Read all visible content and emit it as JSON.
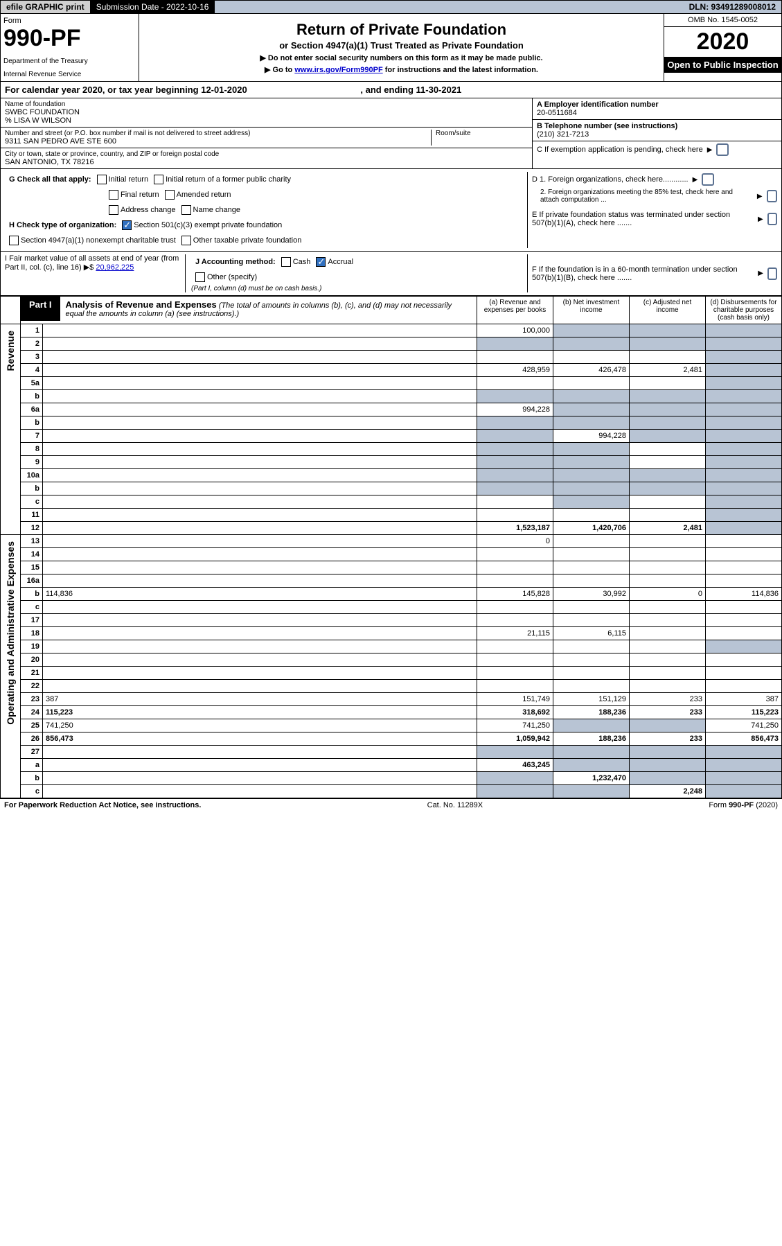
{
  "topbar": {
    "efile": "efile GRAPHIC print",
    "submission_label": "Submission Date - 2022-10-16",
    "dln": "DLN: 93491289008012"
  },
  "header": {
    "form_word": "Form",
    "form_num": "990-PF",
    "dept": "Department of the Treasury",
    "irs": "Internal Revenue Service",
    "title": "Return of Private Foundation",
    "subtitle": "or Section 4947(a)(1) Trust Treated as Private Foundation",
    "instr1": "▶ Do not enter social security numbers on this form as it may be made public.",
    "instr2_pre": "▶ Go to ",
    "instr2_link": "www.irs.gov/Form990PF",
    "instr2_post": " for instructions and the latest information.",
    "omb": "OMB No. 1545-0052",
    "year": "2020",
    "open": "Open to Public Inspection"
  },
  "cal_year": {
    "text": "For calendar year 2020, or tax year beginning 12-01-2020",
    "ending": ", and ending 11-30-2021"
  },
  "foundation": {
    "name_label": "Name of foundation",
    "name": "SWBC FOUNDATION",
    "care_of": "% LISA W WILSON",
    "addr_label": "Number and street (or P.O. box number if mail is not delivered to street address)",
    "addr": "9311 SAN PEDRO AVE STE 600",
    "room_label": "Room/suite",
    "city_label": "City or town, state or province, country, and ZIP or foreign postal code",
    "city": "SAN ANTONIO, TX  78216"
  },
  "right_info": {
    "a_label": "A Employer identification number",
    "a_val": "20-0511684",
    "b_label": "B Telephone number (see instructions)",
    "b_val": "(210) 321-7213",
    "c_label": "C If exemption application is pending, check here",
    "d1": "D 1. Foreign organizations, check here............",
    "d2": "2. Foreign organizations meeting the 85% test, check here and attach computation ...",
    "e": "E  If private foundation status was terminated under section 507(b)(1)(A), check here .......",
    "f": "F  If the foundation is in a 60-month termination under section 507(b)(1)(B), check here .......",
    "arrow": "▶"
  },
  "g": {
    "label": "G Check all that apply:",
    "opts": [
      "Initial return",
      "Initial return of a former public charity",
      "Final return",
      "Amended return",
      "Address change",
      "Name change"
    ]
  },
  "h": {
    "label": "H Check type of organization:",
    "opt1": "Section 501(c)(3) exempt private foundation",
    "opt2": "Section 4947(a)(1) nonexempt charitable trust",
    "opt3": "Other taxable private foundation"
  },
  "i": {
    "label": "I Fair market value of all assets at end of year (from Part II, col. (c), line 16) ▶$ ",
    "val": "20,962,225",
    "j_label": "J Accounting method:",
    "cash": "Cash",
    "accrual": "Accrual",
    "other": "Other (specify)",
    "note": "(Part I, column (d) must be on cash basis.)"
  },
  "part1": {
    "label": "Part I",
    "title": "Analysis of Revenue and Expenses",
    "note": "(The total of amounts in columns (b), (c), and (d) may not necessarily equal the amounts in column (a) (see instructions).)",
    "col_a": "(a)   Revenue and expenses per books",
    "col_b": "(b)   Net investment income",
    "col_c": "(c)   Adjusted net income",
    "col_d": "(d)   Disbursements for charitable purposes (cash basis only)"
  },
  "side_labels": {
    "revenue": "Revenue",
    "opex": "Operating and Administrative Expenses"
  },
  "rows": [
    {
      "n": "1",
      "d": "",
      "a": "100,000",
      "b": "",
      "c": "",
      "b_sh": true,
      "c_sh": true,
      "d_sh": true
    },
    {
      "n": "2",
      "d": "",
      "a": "",
      "b": "",
      "c": "",
      "a_sh": true,
      "b_sh": true,
      "c_sh": true,
      "d_sh": true
    },
    {
      "n": "3",
      "d": "",
      "a": "",
      "b": "",
      "c": "",
      "d_sh": true
    },
    {
      "n": "4",
      "d": "",
      "a": "428,959",
      "b": "426,478",
      "c": "2,481",
      "d_sh": true
    },
    {
      "n": "5a",
      "d": "",
      "a": "",
      "b": "",
      "c": "",
      "d_sh": true
    },
    {
      "n": "b",
      "d": "",
      "a": "",
      "b": "",
      "c": "",
      "a_sh": true,
      "b_sh": true,
      "c_sh": true,
      "d_sh": true
    },
    {
      "n": "6a",
      "d": "",
      "a": "994,228",
      "b": "",
      "c": "",
      "b_sh": true,
      "c_sh": true,
      "d_sh": true
    },
    {
      "n": "b",
      "d": "",
      "a": "",
      "b": "",
      "c": "",
      "a_sh": true,
      "b_sh": true,
      "c_sh": true,
      "d_sh": true
    },
    {
      "n": "7",
      "d": "",
      "a": "",
      "b": "994,228",
      "c": "",
      "a_sh": true,
      "c_sh": true,
      "d_sh": true
    },
    {
      "n": "8",
      "d": "",
      "a": "",
      "b": "",
      "c": "",
      "a_sh": true,
      "b_sh": true,
      "d_sh": true
    },
    {
      "n": "9",
      "d": "",
      "a": "",
      "b": "",
      "c": "",
      "a_sh": true,
      "b_sh": true,
      "d_sh": true
    },
    {
      "n": "10a",
      "d": "",
      "a": "",
      "b": "",
      "c": "",
      "a_sh": true,
      "b_sh": true,
      "c_sh": true,
      "d_sh": true
    },
    {
      "n": "b",
      "d": "",
      "a": "",
      "b": "",
      "c": "",
      "a_sh": true,
      "b_sh": true,
      "c_sh": true,
      "d_sh": true
    },
    {
      "n": "c",
      "d": "",
      "a": "",
      "b": "",
      "c": "",
      "b_sh": true,
      "d_sh": true
    },
    {
      "n": "11",
      "d": "",
      "a": "",
      "b": "",
      "c": "",
      "d_sh": true
    },
    {
      "n": "12",
      "d": "",
      "a": "1,523,187",
      "b": "1,420,706",
      "c": "2,481",
      "bold": true,
      "d_sh": true
    },
    {
      "n": "13",
      "d": "",
      "a": "0",
      "b": "",
      "c": ""
    },
    {
      "n": "14",
      "d": "",
      "a": "",
      "b": "",
      "c": ""
    },
    {
      "n": "15",
      "d": "",
      "a": "",
      "b": "",
      "c": ""
    },
    {
      "n": "16a",
      "d": "",
      "a": "",
      "b": "",
      "c": ""
    },
    {
      "n": "b",
      "d": "114,836",
      "a": "145,828",
      "b": "30,992",
      "c": "0"
    },
    {
      "n": "c",
      "d": "",
      "a": "",
      "b": "",
      "c": ""
    },
    {
      "n": "17",
      "d": "",
      "a": "",
      "b": "",
      "c": ""
    },
    {
      "n": "18",
      "d": "",
      "a": "21,115",
      "b": "6,115",
      "c": ""
    },
    {
      "n": "19",
      "d": "",
      "a": "",
      "b": "",
      "c": "",
      "d_sh": true
    },
    {
      "n": "20",
      "d": "",
      "a": "",
      "b": "",
      "c": ""
    },
    {
      "n": "21",
      "d": "",
      "a": "",
      "b": "",
      "c": ""
    },
    {
      "n": "22",
      "d": "",
      "a": "",
      "b": "",
      "c": ""
    },
    {
      "n": "23",
      "d": "387",
      "a": "151,749",
      "b": "151,129",
      "c": "233"
    },
    {
      "n": "24",
      "d": "115,223",
      "a": "318,692",
      "b": "188,236",
      "c": "233",
      "bold": true
    },
    {
      "n": "25",
      "d": "741,250",
      "a": "741,250",
      "b": "",
      "c": "",
      "b_sh": true,
      "c_sh": true
    },
    {
      "n": "26",
      "d": "856,473",
      "a": "1,059,942",
      "b": "188,236",
      "c": "233",
      "bold": true
    },
    {
      "n": "27",
      "d": "",
      "a": "",
      "b": "",
      "c": "",
      "a_sh": true,
      "b_sh": true,
      "c_sh": true,
      "d_sh": true
    },
    {
      "n": "a",
      "d": "",
      "a": "463,245",
      "b": "",
      "c": "",
      "bold": true,
      "b_sh": true,
      "c_sh": true,
      "d_sh": true
    },
    {
      "n": "b",
      "d": "",
      "a": "",
      "b": "1,232,470",
      "c": "",
      "bold": true,
      "a_sh": true,
      "c_sh": true,
      "d_sh": true
    },
    {
      "n": "c",
      "d": "",
      "a": "",
      "b": "",
      "c": "2,248",
      "bold": true,
      "a_sh": true,
      "b_sh": true,
      "d_sh": true
    }
  ],
  "footer": {
    "left": "For Paperwork Reduction Act Notice, see instructions.",
    "mid": "Cat. No. 11289X",
    "right": "Form 990-PF (2020)"
  },
  "colors": {
    "shade": "#b8c4d4",
    "link": "#0000cc"
  }
}
